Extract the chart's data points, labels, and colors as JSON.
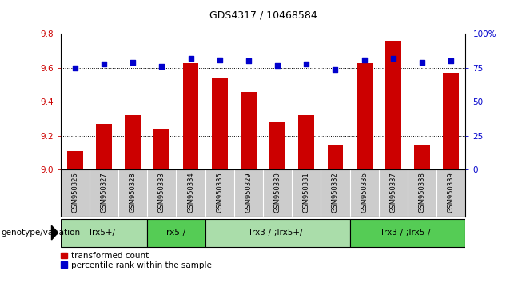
{
  "title": "GDS4317 / 10468584",
  "samples": [
    "GSM950326",
    "GSM950327",
    "GSM950328",
    "GSM950333",
    "GSM950334",
    "GSM950335",
    "GSM950329",
    "GSM950330",
    "GSM950331",
    "GSM950332",
    "GSM950336",
    "GSM950337",
    "GSM950338",
    "GSM950339"
  ],
  "bar_values": [
    9.11,
    9.27,
    9.32,
    9.24,
    9.63,
    9.54,
    9.46,
    9.28,
    9.32,
    9.15,
    9.63,
    9.76,
    9.15,
    9.57
  ],
  "dot_values": [
    75,
    78,
    79,
    76,
    82,
    81,
    80,
    77,
    78,
    74,
    81,
    82,
    79,
    80
  ],
  "bar_color": "#cc0000",
  "dot_color": "#0000cc",
  "ylim_left": [
    9.0,
    9.8
  ],
  "ylim_right": [
    0,
    100
  ],
  "yticks_left": [
    9.0,
    9.2,
    9.4,
    9.6,
    9.8
  ],
  "yticks_right": [
    0,
    25,
    50,
    75,
    100
  ],
  "ytick_labels_right": [
    "0",
    "25",
    "50",
    "75",
    "100%"
  ],
  "hgrid_lines": [
    9.2,
    9.4,
    9.6
  ],
  "groups": [
    {
      "label": "lrx5+/-",
      "start": 0,
      "end": 3,
      "color": "#aaddaa"
    },
    {
      "label": "lrx5-/-",
      "start": 3,
      "end": 5,
      "color": "#55cc55"
    },
    {
      "label": "lrx3-/-;lrx5+/-",
      "start": 5,
      "end": 10,
      "color": "#aaddaa"
    },
    {
      "label": "lrx3-/-;lrx5-/-",
      "start": 10,
      "end": 14,
      "color": "#55cc55"
    }
  ],
  "genotype_label": "genotype/variation",
  "legend_bar_label": "transformed count",
  "legend_dot_label": "percentile rank within the sample",
  "background_color": "#ffffff",
  "tick_area_color": "#cccccc",
  "title_fontsize": 9,
  "axis_fontsize": 7.5,
  "label_fontsize": 7.5,
  "group_fontsize": 7.5
}
